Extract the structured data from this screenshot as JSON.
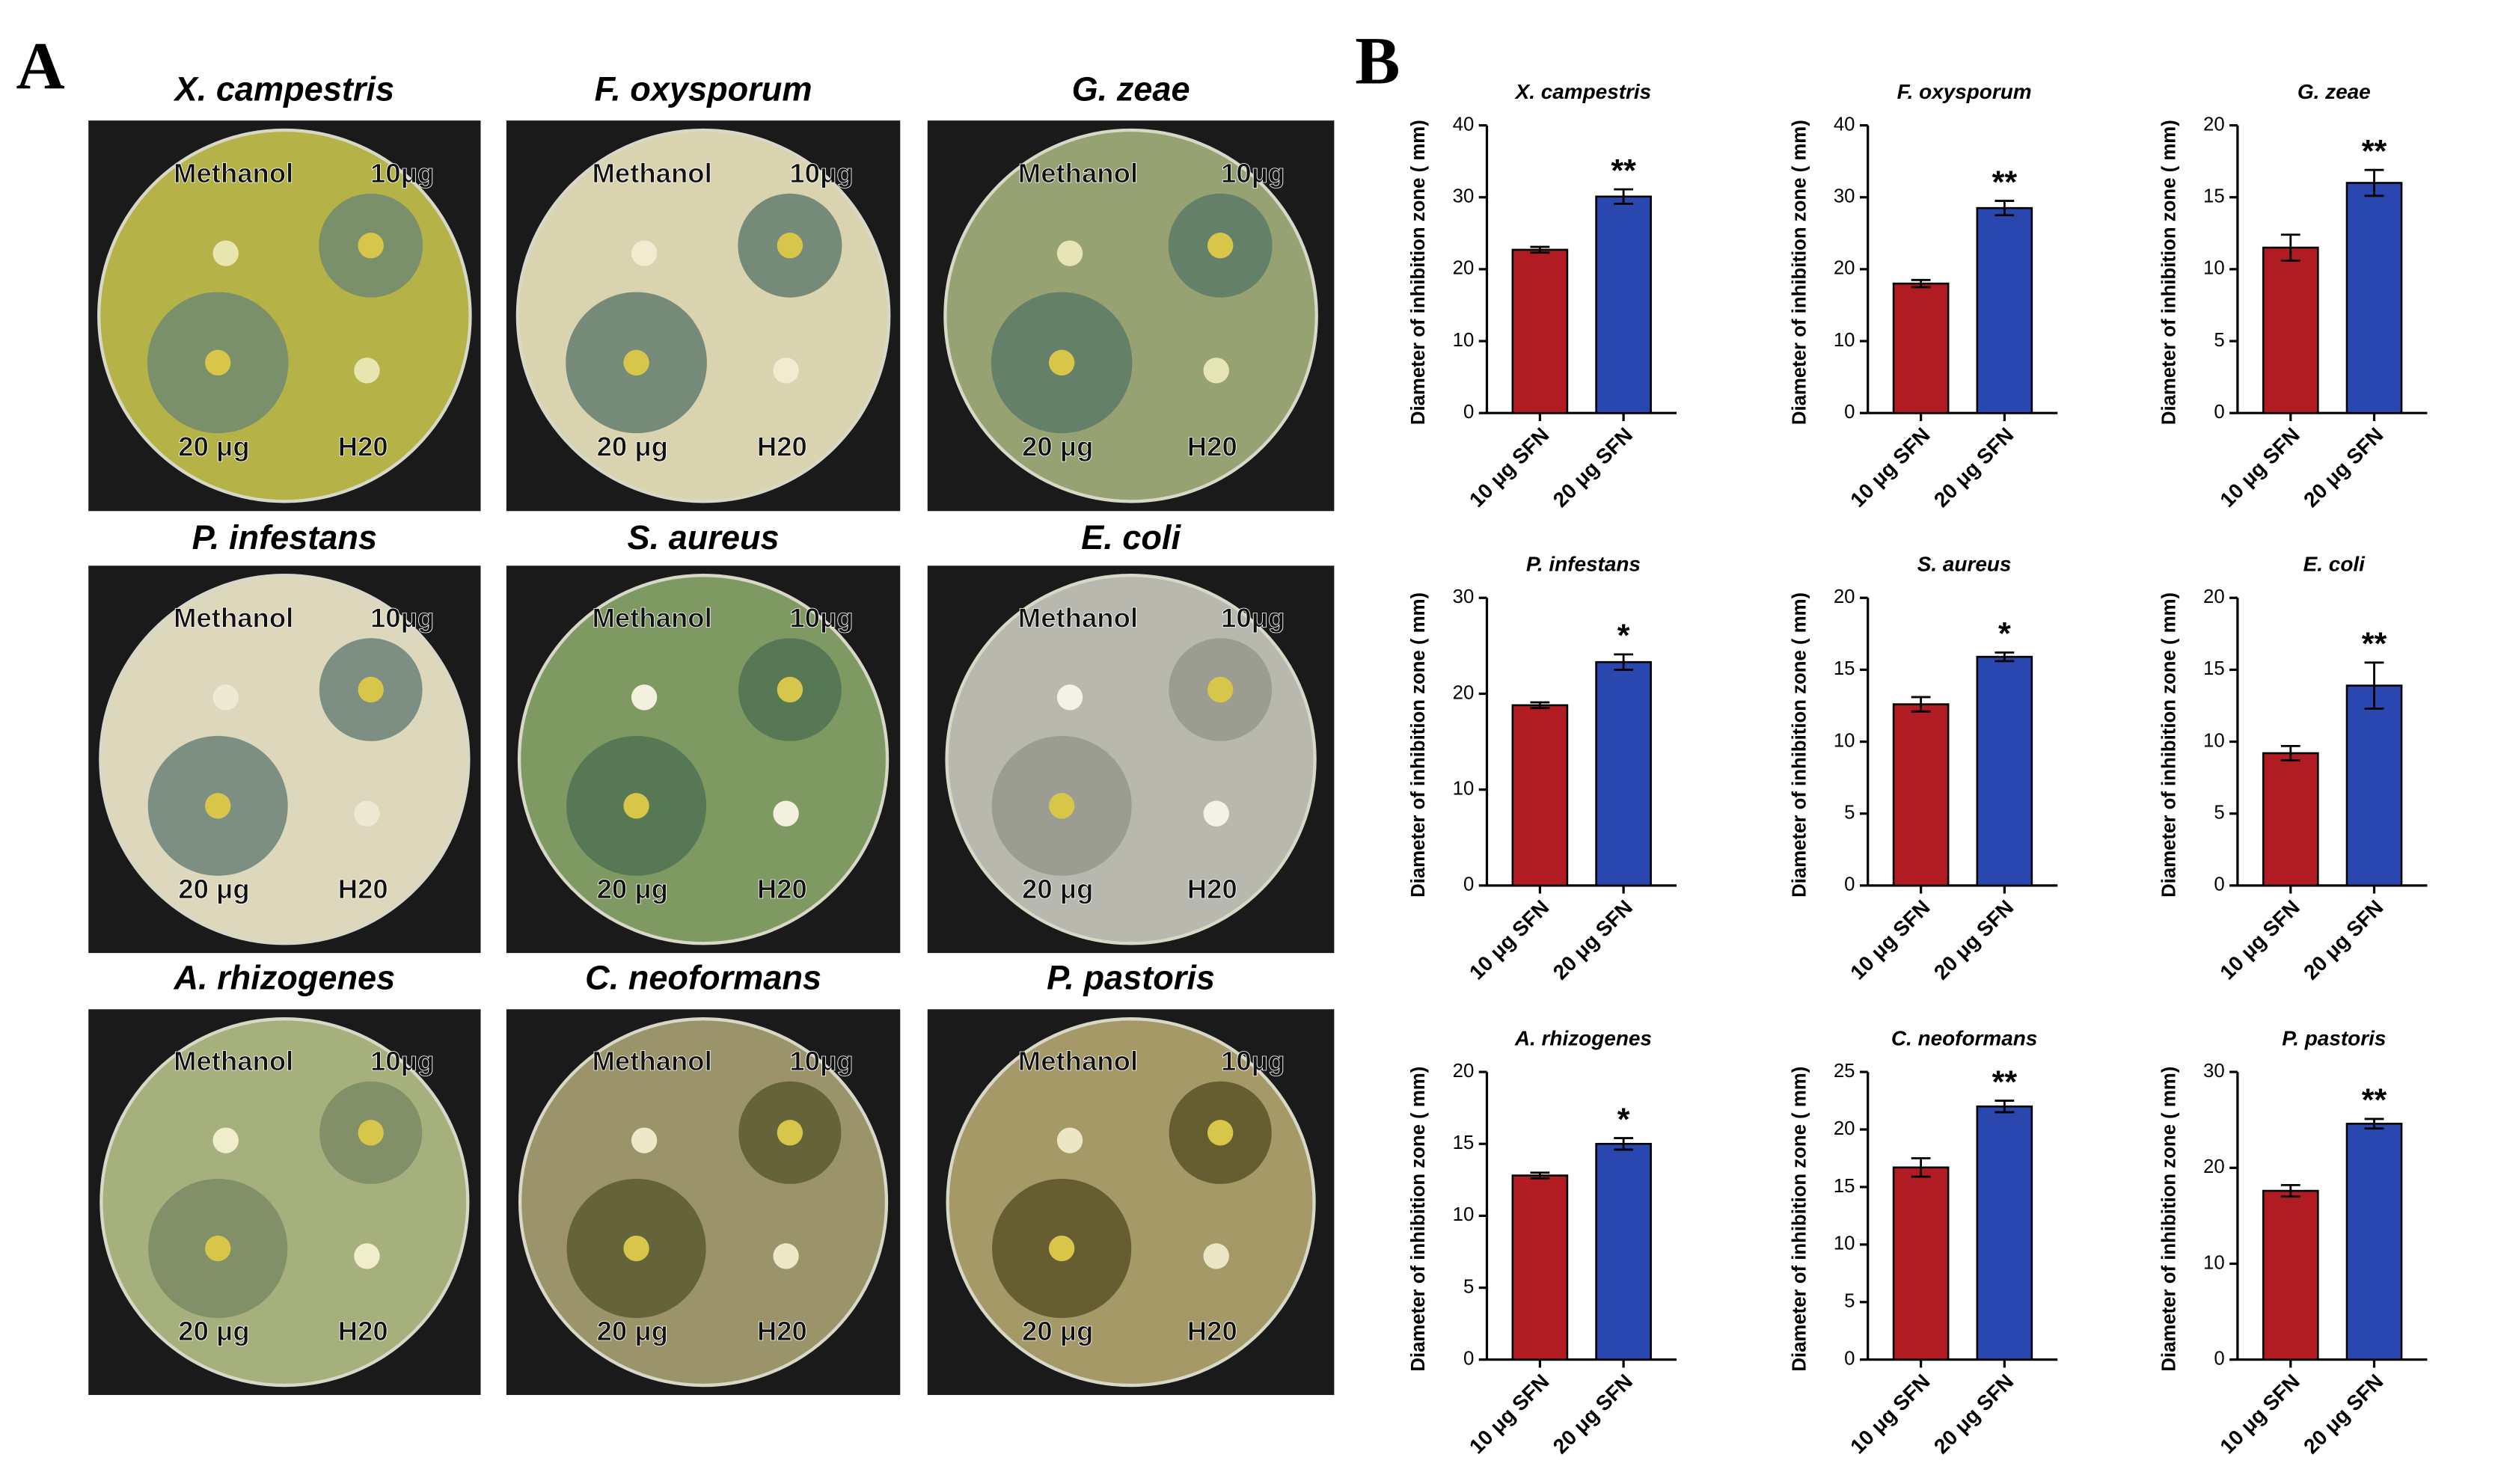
{
  "panel_labels": [
    "A",
    "B"
  ],
  "plates": [
    {
      "title": "X. campestris",
      "labels": [
        "Methanol",
        "10μg",
        "20 μg",
        "H20"
      ]
    },
    {
      "title": "F. oxysporum",
      "labels": [
        "Methanol",
        "10μg",
        "20 μg",
        "H20"
      ]
    },
    {
      "title": "G. zeae",
      "labels": [
        "Methanol",
        "10μg",
        "20 μg",
        "H20"
      ]
    },
    {
      "title": "P. infestans",
      "labels": [
        "Methanol",
        "10μg",
        "20 μg",
        "H20"
      ]
    },
    {
      "title": "S. aureus",
      "labels": [
        "Methanol",
        "10μg",
        "20 μg",
        "H20"
      ]
    },
    {
      "title": "E. coli",
      "labels": [
        "Methanol",
        "10μg",
        "20 μg",
        "H20"
      ]
    },
    {
      "title": "A. rhizogenes",
      "labels": [
        "Methanol",
        "10μg",
        "20 μg",
        "H20"
      ]
    },
    {
      "title": "C. neoformans",
      "labels": [
        "Methanol",
        "10μg",
        "20 μg",
        "H20"
      ]
    },
    {
      "title": "P. pastoris",
      "labels": [
        "Methanol",
        "10μg",
        "20 μg",
        "H20"
      ]
    }
  ],
  "chart_data": [
    {
      "type": "bar",
      "title": "X. campestris",
      "ylabel": "Diameter of inhibition zone ( mm)",
      "categories": [
        "10 μg SFN",
        "20 μg SFN"
      ],
      "values": [
        22.7,
        30.1
      ],
      "errors": [
        0.4,
        1.0
      ],
      "colors": [
        "#b01c22",
        "#2a47b0"
      ],
      "ylim": [
        0,
        40
      ],
      "yticks": [
        0,
        10,
        20,
        30,
        40
      ],
      "annotation": "**"
    },
    {
      "type": "bar",
      "title": "F. oxysporum",
      "ylabel": "Diameter of inhibition zone ( mm)",
      "categories": [
        "10 μg SFN",
        "20 μg SFN"
      ],
      "values": [
        18,
        28.5
      ],
      "errors": [
        0.5,
        1.0
      ],
      "colors": [
        "#b01c22",
        "#2a47b0"
      ],
      "ylim": [
        0,
        40
      ],
      "yticks": [
        0,
        10,
        20,
        30,
        40
      ],
      "annotation": "**"
    },
    {
      "type": "bar",
      "title": "G. zeae",
      "ylabel": "Diameter of inhibition zone ( mm)",
      "categories": [
        "10 μg SFN",
        "20 μg SFN"
      ],
      "values": [
        11.5,
        16
      ],
      "errors": [
        0.9,
        0.9
      ],
      "colors": [
        "#b01c22",
        "#2a47b0"
      ],
      "ylim": [
        0,
        20
      ],
      "yticks": [
        0,
        5,
        10,
        15,
        20
      ],
      "annotation": "**"
    },
    {
      "type": "bar",
      "title": "P. infestans",
      "ylabel": "Diameter of inhibition zone ( mm)",
      "categories": [
        "10 μg SFN",
        "20 μg SFN"
      ],
      "values": [
        18.8,
        23.3
      ],
      "errors": [
        0.3,
        0.8
      ],
      "colors": [
        "#b01c22",
        "#2a47b0"
      ],
      "ylim": [
        0,
        30
      ],
      "yticks": [
        0,
        10,
        20,
        30
      ],
      "annotation": "*"
    },
    {
      "type": "bar",
      "title": "S. aureus",
      "ylabel": "Diameter of inhibition zone ( mm)",
      "categories": [
        "10 μg SFN",
        "20 μg SFN"
      ],
      "values": [
        12.6,
        15.9
      ],
      "errors": [
        0.5,
        0.3
      ],
      "colors": [
        "#b01c22",
        "#2a47b0"
      ],
      "ylim": [
        0,
        20
      ],
      "yticks": [
        0,
        5,
        10,
        15,
        20
      ],
      "annotation": "*"
    },
    {
      "type": "bar",
      "title": "E. coli",
      "ylabel": "Diameter of inhibition zone ( mm)",
      "categories": [
        "10 μg SFN",
        "20 μg SFN"
      ],
      "values": [
        9.2,
        13.9
      ],
      "errors": [
        0.5,
        1.6
      ],
      "colors": [
        "#b01c22",
        "#2a47b0"
      ],
      "ylim": [
        0,
        20
      ],
      "yticks": [
        0,
        5,
        10,
        15,
        20
      ],
      "annotation": "**"
    },
    {
      "type": "bar",
      "title": "A. rhizogenes",
      "ylabel": "Diameter of inhibition zone ( mm)",
      "categories": [
        "10 μg SFN",
        "20 μg SFN"
      ],
      "values": [
        12.8,
        15
      ],
      "errors": [
        0.2,
        0.4
      ],
      "colors": [
        "#b01c22",
        "#2a47b0"
      ],
      "ylim": [
        0,
        20
      ],
      "yticks": [
        0,
        5,
        10,
        15,
        20
      ],
      "annotation": "*"
    },
    {
      "type": "bar",
      "title": "C. neoformans",
      "ylabel": "Diameter of inhibition zone ( mm)",
      "categories": [
        "10 μg SFN",
        "20 μg SFN"
      ],
      "values": [
        16.7,
        22
      ],
      "errors": [
        0.8,
        0.5
      ],
      "colors": [
        "#b01c22",
        "#2a47b0"
      ],
      "ylim": [
        0,
        25
      ],
      "yticks": [
        0,
        5,
        10,
        15,
        20,
        25
      ],
      "annotation": "**"
    },
    {
      "type": "bar",
      "title": "P. pastoris",
      "ylabel": "Diameter of inhibition zone ( mm)",
      "categories": [
        "10 μg SFN",
        "20 μg SFN"
      ],
      "values": [
        17.6,
        24.6
      ],
      "errors": [
        0.6,
        0.5
      ],
      "colors": [
        "#b01c22",
        "#2a47b0"
      ],
      "ylim": [
        0,
        30
      ],
      "yticks": [
        0,
        10,
        20,
        30
      ],
      "annotation": "**"
    }
  ]
}
